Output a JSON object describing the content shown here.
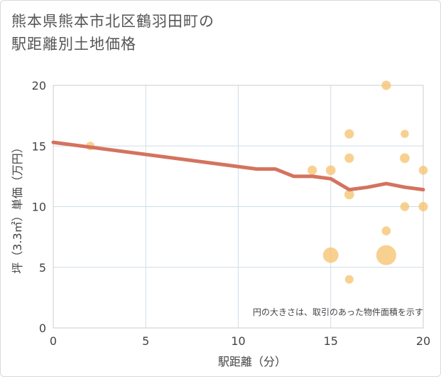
{
  "title_lines": [
    "熊本県熊本市北区鶴羽田町の",
    "駅距離別土地価格"
  ],
  "chart_data": {
    "type": "scatter",
    "title": "熊本県熊本市北区鶴羽田町の駅距離別土地価格",
    "xlabel": "駅距離（分）",
    "ylabel": "坪（3.3㎡）単価（万円）",
    "xlim": [
      0,
      20
    ],
    "ylim": [
      0,
      20
    ],
    "xticks": [
      0,
      5,
      10,
      15,
      20
    ],
    "yticks": [
      0,
      5,
      10,
      15,
      20
    ],
    "grid": true,
    "note": "円の大きさは、取引のあった物件面積を示す",
    "colors": {
      "points": "#f5c26b",
      "trend": "#d4735e",
      "grid": "#cfdde8"
    },
    "scatter": [
      {
        "x": 2,
        "y": 15,
        "size": 1
      },
      {
        "x": 14,
        "y": 13,
        "size": 1.2
      },
      {
        "x": 15,
        "y": 13,
        "size": 1.3
      },
      {
        "x": 15,
        "y": 6,
        "size": 3.3
      },
      {
        "x": 16,
        "y": 16,
        "size": 1.2
      },
      {
        "x": 16,
        "y": 14,
        "size": 1.2
      },
      {
        "x": 16,
        "y": 11,
        "size": 1.3
      },
      {
        "x": 16,
        "y": 4,
        "size": 1
      },
      {
        "x": 18,
        "y": 20,
        "size": 1.2
      },
      {
        "x": 18,
        "y": 8,
        "size": 1.1
      },
      {
        "x": 18,
        "y": 6,
        "size": 5.5
      },
      {
        "x": 19,
        "y": 16,
        "size": 0.9
      },
      {
        "x": 19,
        "y": 14,
        "size": 1.3
      },
      {
        "x": 19,
        "y": 10,
        "size": 1.1
      },
      {
        "x": 20,
        "y": 13,
        "size": 1.1
      },
      {
        "x": 20,
        "y": 10,
        "size": 1.2
      }
    ],
    "trend": {
      "name": "trend",
      "x": [
        0,
        11,
        12,
        13,
        14,
        15,
        16,
        17,
        18,
        19,
        20
      ],
      "y": [
        15.3,
        13.1,
        13.1,
        12.5,
        12.5,
        12.3,
        11.4,
        11.6,
        11.9,
        11.6,
        11.4
      ]
    }
  }
}
